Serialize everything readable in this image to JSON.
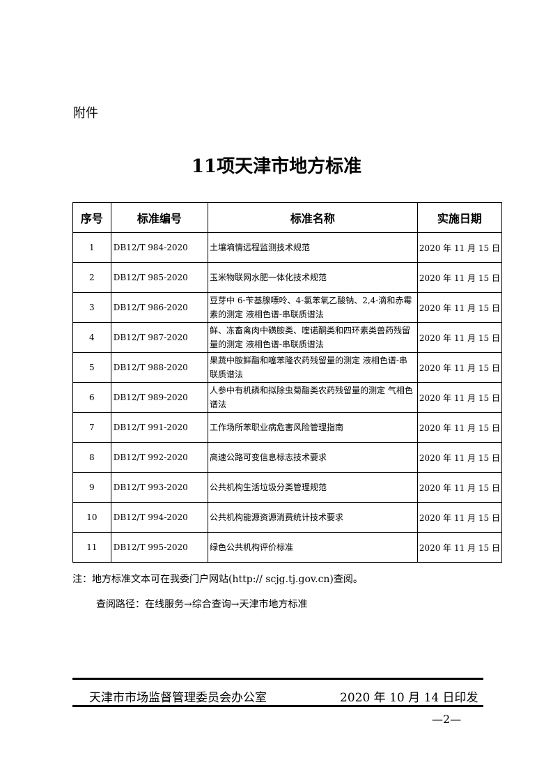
{
  "attachment_label": "附件",
  "title": "11项天津市地方标准",
  "table": {
    "headers": [
      "序号",
      "标准编号",
      "标准名称",
      "实施日期"
    ],
    "rows": [
      [
        "1",
        "DB12/T 984-2020",
        "土壤墒情远程监测技术规范",
        "2020 年 11 月 15 日"
      ],
      [
        "2",
        "DB12/T 985-2020",
        "玉米物联网水肥一体化技术规范",
        "2020 年 11 月 15 日"
      ],
      [
        "3",
        "DB12/T 986-2020",
        "豆芽中 6-苄基腺嘌呤、4-氯苯氧乙酸钠、2,4-滴和赤霉素的测定 液相色谱-串联质谱法",
        "2020 年 11 月 15 日"
      ],
      [
        "4",
        "DB12/T 987-2020",
        "鲜、冻畜禽肉中磺胺类、喹诺酮类和四环素类兽药残留量的测定 液相色谱-串联质谱法",
        "2020 年 11 月 15 日"
      ],
      [
        "5",
        "DB12/T 988-2020",
        "果蔬中胺鲜酯和噻苯隆农药残留量的测定 液相色谱-串联质谱法",
        "2020 年 11 月 15 日"
      ],
      [
        "6",
        "DB12/T 989-2020",
        "人参中有机磷和拟除虫菊酯类农药残留量的测定 气相色谱法",
        "2020 年 11 月 15 日"
      ],
      [
        "7",
        "DB12/T 991-2020",
        "工作场所苯职业病危害风险管理指南",
        "2020 年 11 月 15 日"
      ],
      [
        "8",
        "DB12/T 992-2020",
        "高速公路可变信息标志技术要求",
        "2020 年 11 月 15 日"
      ],
      [
        "9",
        "DB12/T 993-2020",
        "公共机构生活垃圾分类管理规范",
        "2020 年 11 月 15 日"
      ],
      [
        "10",
        "DB12/T 994-2020",
        "公共机构能源资源消费统计技术要求",
        "2020 年 11 月 15 日"
      ],
      [
        "11",
        "DB12/T 995-2020",
        "绿色公共机构评价标准",
        "2020 年 11 月 15 日"
      ]
    ]
  },
  "note": "注：地方标准文本可在我委门户网站(http:// scjg.tj.gov.cn)查阅。",
  "path": "查阅路径：在线服务→综合查询→天津市地方标准",
  "footer": {
    "issuer": "天津市市场监督管理委员会办公室",
    "date": "2020 年 10 月 14 日印发"
  },
  "page_number": "—2—"
}
